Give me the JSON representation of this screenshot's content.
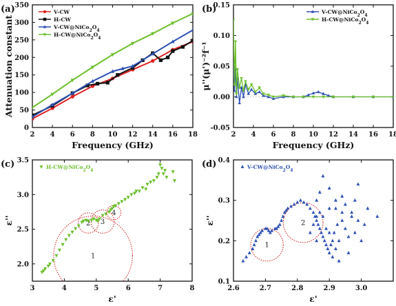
{
  "chart_data": [
    {
      "panel": "(a)",
      "type": "line",
      "xlabel": "Frequency (GHz)",
      "ylabel": "Attenuation constant",
      "xlim": [
        2,
        18
      ],
      "ylim": [
        0,
        350
      ],
      "xticks": [
        2,
        4,
        6,
        8,
        10,
        12,
        14,
        16,
        18
      ],
      "yticks": [
        0,
        50,
        100,
        150,
        200,
        250,
        300,
        350
      ],
      "legend_position": "top-left",
      "series": [
        {
          "name": "V-CW",
          "color": "#e02020",
          "marker": "circle",
          "x": [
            2,
            4,
            6,
            8,
            10,
            12,
            14,
            16,
            18
          ],
          "y": [
            25,
            55,
            88,
            118,
            140,
            165,
            190,
            222,
            245
          ]
        },
        {
          "name": "H-CW",
          "color": "#111111",
          "marker": "square",
          "x": [
            2,
            4,
            6,
            7.5,
            8.5,
            9.5,
            10.5,
            12,
            13,
            14,
            14.8,
            15.5,
            16,
            17,
            18
          ],
          "y": [
            35,
            62,
            98,
            120,
            125,
            128,
            150,
            170,
            192,
            212,
            192,
            200,
            218,
            230,
            248
          ]
        },
        {
          "name": "V-CW@NiCo2O4",
          "color": "#2b4fb3",
          "marker": "triangle",
          "x": [
            2,
            4,
            6,
            8,
            10,
            11,
            12,
            14,
            16,
            18
          ],
          "y": [
            30,
            65,
            98,
            132,
            160,
            168,
            175,
            210,
            245,
            278
          ]
        },
        {
          "name": "H-CW@NiCo2O4",
          "color": "#6bbf2a",
          "marker": "triangle-down",
          "x": [
            2,
            4,
            6,
            8,
            10,
            12,
            14,
            16,
            18
          ],
          "y": [
            57,
            95,
            135,
            172,
            208,
            240,
            268,
            298,
            325
          ]
        }
      ]
    },
    {
      "panel": "(b)",
      "type": "line",
      "xlabel": "Frequency (GHz)",
      "ylabel": "μ''(μ')⁻²f⁻¹",
      "xlim": [
        2,
        18
      ],
      "ylim": [
        -0.05,
        0.15
      ],
      "xticks": [
        2,
        4,
        6,
        8,
        10,
        12,
        14,
        16,
        18
      ],
      "yticks": [
        -0.05,
        0.0,
        0.05,
        0.1,
        0.15
      ],
      "legend_position": "top-right",
      "series": [
        {
          "name": "V-CW@NiCo2O4",
          "color": "#2b4fb3",
          "marker": "triangle",
          "x": [
            2.0,
            2.1,
            2.2,
            2.3,
            2.4,
            2.6,
            2.8,
            3.0,
            3.2,
            3.5,
            3.8,
            4.2,
            4.6,
            5.0,
            5.5,
            6.0,
            7.0,
            8.0,
            9.0,
            9.5,
            10.0,
            10.5,
            11.0,
            11.5,
            12.0,
            14.0,
            16.0,
            18.0
          ],
          "y": [
            0.055,
            0.01,
            0.045,
            0.0,
            0.03,
            -0.01,
            0.015,
            0.0,
            0.02,
            0.005,
            0.012,
            0.005,
            0.008,
            0.002,
            0.0,
            -0.003,
            0.0,
            0.0,
            0.0,
            0.003,
            0.006,
            0.008,
            0.005,
            0.002,
            0.0,
            0.0,
            0.0,
            0.0
          ]
        },
        {
          "name": "H-CW@NiCo2O4",
          "color": "#6bbf2a",
          "marker": "triangle-down",
          "x": [
            2.0,
            2.1,
            2.2,
            2.3,
            2.4,
            2.6,
            2.8,
            3.0,
            3.2,
            3.5,
            3.8,
            4.2,
            4.6,
            5.0,
            5.5,
            6.0,
            7.0,
            8.0,
            9.0,
            10.0,
            11.0,
            12.0,
            14.0,
            16.0,
            18.0
          ],
          "y": [
            0.125,
            0.02,
            0.09,
            0.005,
            0.045,
            0.015,
            0.03,
            0.01,
            0.025,
            0.012,
            0.02,
            0.008,
            0.015,
            0.005,
            0.003,
            0.0,
            0.002,
            0.0,
            0.0,
            0.0,
            0.0,
            0.0,
            0.0,
            0.0,
            0.0
          ]
        }
      ]
    },
    {
      "panel": "(c)",
      "type": "scatter",
      "xlabel": "ε'",
      "ylabel": "ε''",
      "xlim": [
        3,
        8
      ],
      "ylim": [
        1.75,
        3.5
      ],
      "xticks": [
        3,
        4,
        5,
        6,
        7,
        8
      ],
      "yticks": [
        2.0,
        2.5,
        3.0,
        3.5
      ],
      "legend_position": "top-left",
      "series": [
        {
          "name": "H-CW@NiCo2O4",
          "color": "#6bbf2a",
          "marker": "triangle-down",
          "x": [
            3.3,
            3.35,
            3.4,
            3.5,
            3.55,
            3.65,
            3.75,
            3.85,
            3.95,
            4.05,
            4.15,
            4.25,
            4.35,
            4.45,
            4.55,
            4.6,
            4.68,
            4.75,
            4.85,
            4.92,
            5.0,
            5.05,
            5.1,
            5.2,
            5.3,
            5.4,
            5.45,
            5.5,
            5.55,
            5.6,
            5.7,
            5.8,
            5.9,
            6.0,
            6.1,
            6.2,
            6.25,
            6.35,
            6.45,
            6.55,
            6.6,
            6.7,
            6.8,
            6.9,
            6.95,
            7.0,
            7.05,
            7.1,
            7.15,
            7.2,
            7.4,
            7.45
          ],
          "y": [
            1.88,
            1.9,
            1.93,
            1.97,
            2.0,
            2.05,
            2.12,
            2.2,
            2.28,
            2.35,
            2.41,
            2.46,
            2.51,
            2.55,
            2.6,
            2.62,
            2.63,
            2.62,
            2.63,
            2.65,
            2.63,
            2.62,
            2.65,
            2.7,
            2.72,
            2.75,
            2.78,
            2.8,
            2.83,
            2.84,
            2.87,
            2.9,
            2.93,
            2.96,
            3.0,
            3.02,
            3.05,
            3.05,
            3.1,
            3.08,
            3.15,
            3.18,
            3.2,
            3.25,
            3.3,
            3.43,
            3.38,
            3.3,
            3.35,
            3.25,
            3.33,
            3.2
          ]
        }
      ],
      "circles": [
        {
          "label": "1",
          "cx": 4.9,
          "cy": 2.12,
          "r": 0.78
        },
        {
          "label": "2",
          "cx": 4.75,
          "cy": 2.59,
          "r": 0.2
        },
        {
          "label": "3",
          "cx": 5.2,
          "cy": 2.61,
          "r": 0.23
        },
        {
          "label": "4",
          "cx": 5.55,
          "cy": 2.74,
          "r": 0.14
        }
      ]
    },
    {
      "panel": "(d)",
      "type": "scatter",
      "xlabel": "ε'",
      "ylabel": "ε''",
      "xlim": [
        2.6,
        3.1
      ],
      "ylim": [
        0.1,
        0.4
      ],
      "xticks": [
        2.6,
        2.7,
        2.8,
        2.9,
        3.0
      ],
      "yticks": [
        0.1,
        0.2,
        0.3,
        0.4
      ],
      "legend_position": "top-left",
      "series": [
        {
          "name": "V-CW@NiCo2O4",
          "color": "#2b4fb3",
          "marker": "triangle",
          "x": [
            2.63,
            2.64,
            2.65,
            2.66,
            2.665,
            2.67,
            2.675,
            2.68,
            2.685,
            2.69,
            2.7,
            2.705,
            2.71,
            2.715,
            2.72,
            2.73,
            2.735,
            2.74,
            2.745,
            2.75,
            2.755,
            2.76,
            2.765,
            2.77,
            2.78,
            2.79,
            2.8,
            2.81,
            2.82,
            2.83,
            2.84,
            2.85,
            2.855,
            2.86,
            2.865,
            2.87,
            2.875,
            2.88,
            2.885,
            2.89,
            2.895,
            2.9,
            2.905,
            2.91,
            2.915,
            2.92,
            2.925,
            2.93,
            2.94,
            2.95,
            2.96,
            2.97,
            2.98,
            2.99,
            3.0,
            3.01,
            3.05,
            2.86,
            2.87,
            2.88,
            2.9,
            2.92,
            2.94,
            2.95,
            2.97,
            2.99,
            2.96,
            2.93,
            2.91,
            2.89,
            2.87,
            2.85,
            2.88,
            2.9,
            2.92,
            2.86,
            2.84,
            2.86,
            2.9,
            2.94,
            2.98,
            3.02
          ],
          "y": [
            0.15,
            0.16,
            0.17,
            0.18,
            0.19,
            0.2,
            0.21,
            0.215,
            0.22,
            0.225,
            0.23,
            0.23,
            0.225,
            0.22,
            0.225,
            0.23,
            0.23,
            0.235,
            0.24,
            0.25,
            0.26,
            0.27,
            0.275,
            0.28,
            0.285,
            0.29,
            0.295,
            0.3,
            0.295,
            0.29,
            0.28,
            0.27,
            0.26,
            0.25,
            0.24,
            0.23,
            0.22,
            0.21,
            0.2,
            0.19,
            0.18,
            0.17,
            0.19,
            0.2,
            0.22,
            0.18,
            0.24,
            0.2,
            0.25,
            0.23,
            0.21,
            0.26,
            0.22,
            0.25,
            0.2,
            0.24,
            0.26,
            0.3,
            0.32,
            0.36,
            0.33,
            0.28,
            0.31,
            0.29,
            0.27,
            0.34,
            0.17,
            0.15,
            0.16,
            0.23,
            0.27,
            0.24,
            0.26,
            0.28,
            0.3,
            0.2,
            0.22,
            0.26,
            0.22,
            0.27,
            0.3,
            0.28
          ]
        }
      ],
      "circles": [
        {
          "label": "1",
          "cx": 2.705,
          "cy": 0.19,
          "r": 0.045
        },
        {
          "label": "2",
          "cx": 2.818,
          "cy": 0.245,
          "r": 0.055
        }
      ]
    }
  ]
}
